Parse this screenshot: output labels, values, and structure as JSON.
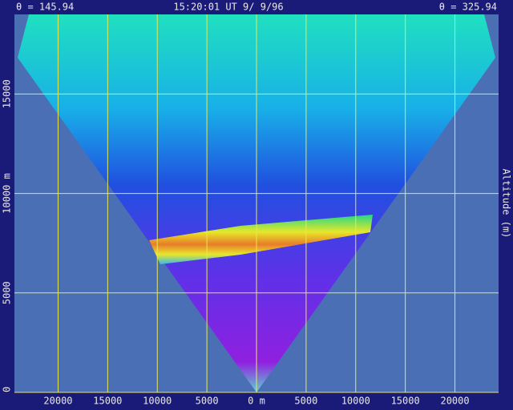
{
  "chart_data": {
    "type": "rhi-scan",
    "header_left": "θ = 145.94",
    "header_center": "15:20:01 UT  9/ 9/96",
    "header_right": "θ = 325.94",
    "y_label": "Altitude (m)",
    "xlim": [
      -24400,
      24400
    ],
    "ylim": [
      0,
      19000
    ],
    "xticks": [
      {
        "value": -20000,
        "label": "20000"
      },
      {
        "value": -15000,
        "label": "15000"
      },
      {
        "value": -10000,
        "label": "10000"
      },
      {
        "value": -5000,
        "label": "5000"
      },
      {
        "value": 0,
        "label": "0 m"
      },
      5000,
      10000,
      15000,
      20000
    ],
    "yticks": [
      0,
      5000,
      {
        "value": 10000,
        "label": "10000 m"
      },
      15000
    ],
    "grid": true,
    "grid_color": "#e8e850"
  }
}
